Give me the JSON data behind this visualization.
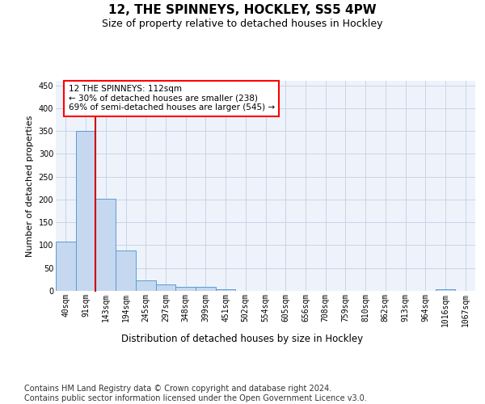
{
  "title": "12, THE SPINNEYS, HOCKLEY, SS5 4PW",
  "subtitle": "Size of property relative to detached houses in Hockley",
  "xlabel": "Distribution of detached houses by size in Hockley",
  "ylabel": "Number of detached properties",
  "bar_color": "#c5d8f0",
  "bar_edge_color": "#5b9bd5",
  "grid_color": "#c8d4e8",
  "bg_color": "#eef3fb",
  "vline_color": "#cc0000",
  "annotation_text": "12 THE SPINNEYS: 112sqm\n← 30% of detached houses are smaller (238)\n69% of semi-detached houses are larger (545) →",
  "categories": [
    "40sqm",
    "91sqm",
    "143sqm",
    "194sqm",
    "245sqm",
    "297sqm",
    "348sqm",
    "399sqm",
    "451sqm",
    "502sqm",
    "554sqm",
    "605sqm",
    "656sqm",
    "708sqm",
    "759sqm",
    "810sqm",
    "862sqm",
    "913sqm",
    "964sqm",
    "1016sqm",
    "1067sqm"
  ],
  "values": [
    108,
    350,
    202,
    89,
    23,
    14,
    9,
    8,
    4,
    0,
    0,
    0,
    0,
    0,
    0,
    0,
    0,
    0,
    0,
    4,
    0
  ],
  "ylim": [
    0,
    460
  ],
  "yticks": [
    0,
    50,
    100,
    150,
    200,
    250,
    300,
    350,
    400,
    450
  ],
  "footer": "Contains HM Land Registry data © Crown copyright and database right 2024.\nContains public sector information licensed under the Open Government Licence v3.0.",
  "footer_fontsize": 7.0,
  "title_fontsize": 11,
  "subtitle_fontsize": 9,
  "xlabel_fontsize": 8.5,
  "ylabel_fontsize": 8.0,
  "tick_fontsize": 7.0,
  "annotation_fontsize": 7.5,
  "vline_xindex": 1
}
